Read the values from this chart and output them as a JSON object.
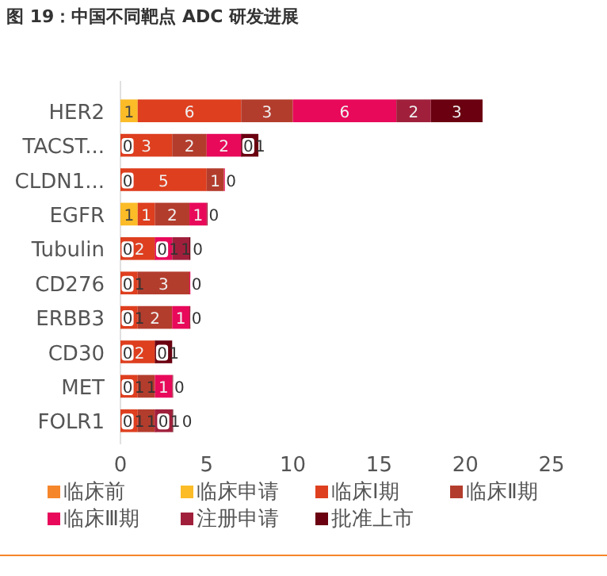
{
  "chart_data": {
    "type": "bar",
    "orientation": "horizontal",
    "stacked": true,
    "title": "图 19：中国不同靶点 ADC 研发进展",
    "categories": [
      "HER2",
      "TACST...",
      "CLDN1...",
      "EGFR",
      "Tubulin",
      "CD276",
      "ERBB3",
      "CD30",
      "MET",
      "FOLR1"
    ],
    "series": [
      {
        "name": "临床前",
        "color": "#f5862a",
        "values": [
          null,
          null,
          null,
          null,
          null,
          null,
          null,
          null,
          null,
          null
        ]
      },
      {
        "name": "临床申请",
        "color": "#fbbc28",
        "values": [
          1,
          0,
          0,
          1,
          0,
          0,
          0,
          0,
          0,
          0
        ]
      },
      {
        "name": "临床Ⅰ期",
        "color": "#de3f1f",
        "values": [
          6,
          3,
          5,
          1,
          2,
          1,
          1,
          2,
          1,
          1
        ]
      },
      {
        "name": "临床Ⅱ期",
        "color": "#b33d2d",
        "values": [
          3,
          2,
          1,
          2,
          0,
          3,
          2,
          0,
          1,
          1
        ]
      },
      {
        "name": "临床Ⅲ期",
        "color": "#e8095a",
        "values": [
          6,
          2,
          0,
          1,
          1,
          0,
          1,
          null,
          1,
          0
        ]
      },
      {
        "name": "注册申请",
        "color": "#a0203c",
        "values": [
          2,
          0,
          null,
          0,
          1,
          null,
          0,
          null,
          0,
          1
        ]
      },
      {
        "name": "批准上市",
        "color": "#6a0010",
        "values": [
          3,
          1,
          null,
          null,
          0,
          null,
          null,
          1,
          null,
          0
        ]
      }
    ],
    "xlim": [
      0,
      25
    ],
    "xticks": [
      0,
      5,
      10,
      15,
      20,
      25
    ],
    "data_labels": true,
    "grid": false,
    "legend": "bottom"
  }
}
